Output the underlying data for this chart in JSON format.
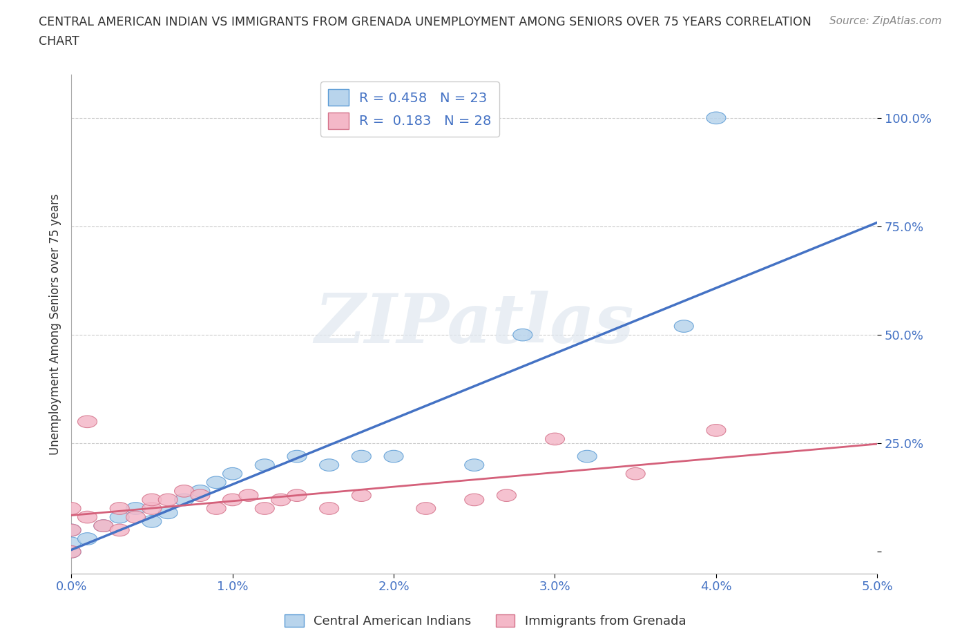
{
  "title_line1": "CENTRAL AMERICAN INDIAN VS IMMIGRANTS FROM GRENADA UNEMPLOYMENT AMONG SENIORS OVER 75 YEARS CORRELATION",
  "title_line2": "CHART",
  "source_text": "Source: ZipAtlas.com",
  "ylabel": "Unemployment Among Seniors over 75 years",
  "xlim": [
    0.0,
    0.05
  ],
  "ylim": [
    -0.05,
    1.1
  ],
  "xticks": [
    0.0,
    0.01,
    0.02,
    0.03,
    0.04,
    0.05
  ],
  "xtick_labels": [
    "0.0%",
    "1.0%",
    "2.0%",
    "3.0%",
    "4.0%",
    "5.0%"
  ],
  "yticks": [
    0.0,
    0.25,
    0.5,
    0.75,
    1.0
  ],
  "ytick_labels": [
    "",
    "25.0%",
    "50.0%",
    "75.0%",
    "100.0%"
  ],
  "legend_label1": "R = 0.458   N = 23",
  "legend_label2": "R =  0.183   N = 28",
  "series1_color": "#b8d4ec",
  "series1_edge": "#5b9bd5",
  "series2_color": "#f4b8c8",
  "series2_edge": "#d4728a",
  "line1_color": "#4472c4",
  "line2_color": "#d4607a",
  "watermark": "ZIPatlas",
  "background_color": "#ffffff",
  "grid_color": "#cccccc",
  "blue_x": [
    0.0,
    0.0,
    0.0,
    0.001,
    0.002,
    0.003,
    0.004,
    0.005,
    0.006,
    0.007,
    0.008,
    0.009,
    0.01,
    0.012,
    0.014,
    0.016,
    0.018,
    0.02,
    0.025,
    0.028,
    0.032,
    0.038,
    0.04
  ],
  "blue_y": [
    0.0,
    0.02,
    0.05,
    0.03,
    0.06,
    0.08,
    0.1,
    0.07,
    0.09,
    0.12,
    0.14,
    0.16,
    0.18,
    0.2,
    0.22,
    0.2,
    0.22,
    0.22,
    0.2,
    0.5,
    0.22,
    0.52,
    1.0
  ],
  "pink_x": [
    0.0,
    0.0,
    0.0,
    0.001,
    0.001,
    0.002,
    0.003,
    0.003,
    0.004,
    0.005,
    0.005,
    0.006,
    0.007,
    0.008,
    0.009,
    0.01,
    0.011,
    0.012,
    0.013,
    0.014,
    0.016,
    0.018,
    0.022,
    0.025,
    0.027,
    0.03,
    0.035,
    0.04
  ],
  "pink_y": [
    0.0,
    0.05,
    0.1,
    0.08,
    0.3,
    0.06,
    0.05,
    0.1,
    0.08,
    0.1,
    0.12,
    0.12,
    0.14,
    0.13,
    0.1,
    0.12,
    0.13,
    0.1,
    0.12,
    0.13,
    0.1,
    0.13,
    0.1,
    0.12,
    0.13,
    0.26,
    0.18,
    0.28
  ]
}
